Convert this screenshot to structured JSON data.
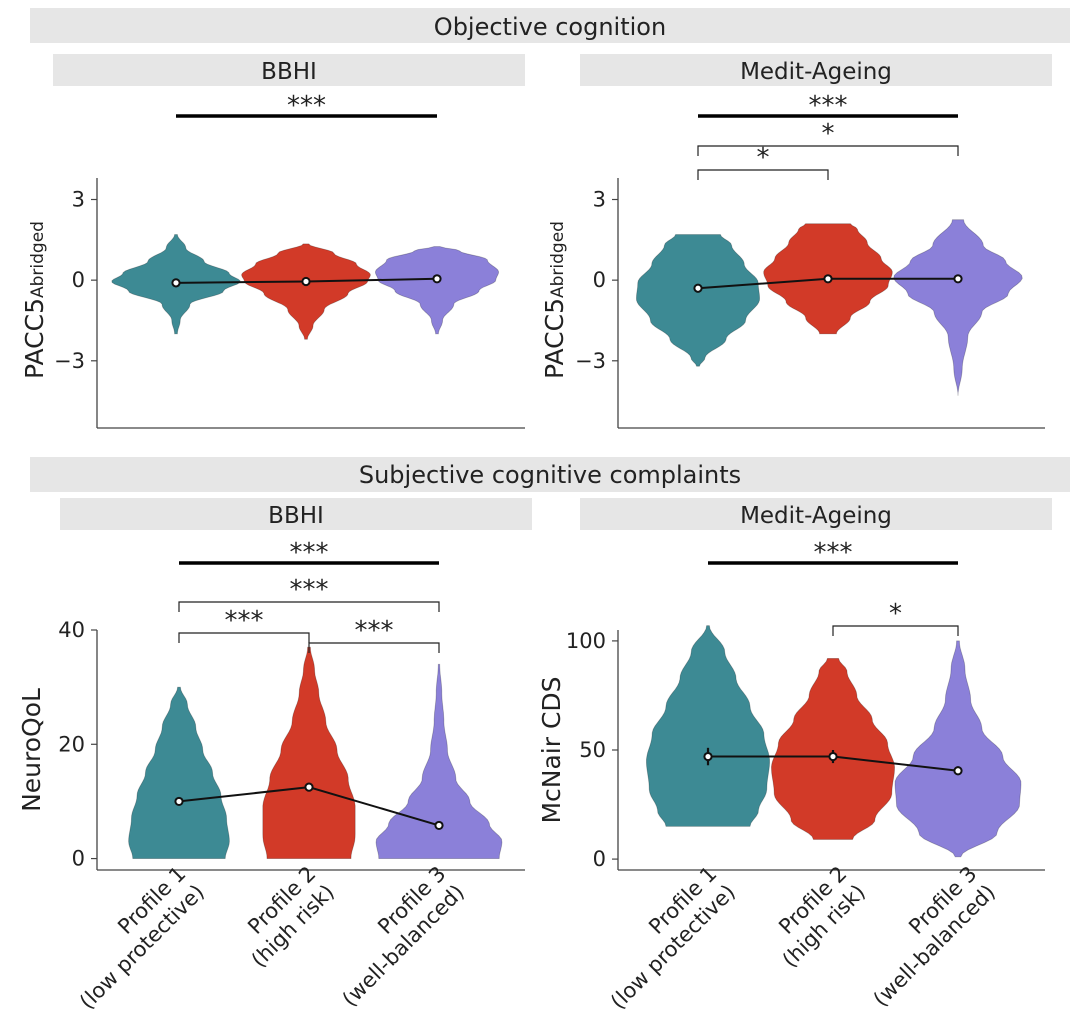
{
  "sections": {
    "objective": "Objective cognition",
    "subjective": "Subjective cognitive complaints"
  },
  "x_categories": [
    {
      "line1": "Profile 1",
      "line2": "(low protective)"
    },
    {
      "line1": "Profile 2",
      "line2": "(high risk)"
    },
    {
      "line1": "Profile 3",
      "line2": "(well-balanced)"
    }
  ],
  "colors": {
    "profile1": "#3d8a94",
    "profile2": "#d23a28",
    "profile3": "#8b80d9",
    "header_bg": "#e6e6e6",
    "axis": "#444444",
    "line": "#111111"
  },
  "chart_data": [
    {
      "id": "p1",
      "type": "violin",
      "study": "BBHI",
      "ylabel_main": "PACC5",
      "ylabel_sub": "Abridged",
      "ylim": [
        -5.5,
        3.8
      ],
      "yticks": [
        3,
        0,
        -3
      ],
      "means": [
        -0.1,
        -0.05,
        0.05
      ],
      "errors": [
        0.05,
        0.05,
        0.05
      ],
      "violins": [
        {
          "min": -2.0,
          "max": 1.7,
          "stats": [
            [
              -2.0,
              0.01
            ],
            [
              -1.5,
              0.03
            ],
            [
              -0.9,
              0.1
            ],
            [
              -0.4,
              0.34
            ],
            [
              -0.05,
              0.46
            ],
            [
              0.25,
              0.38
            ],
            [
              0.7,
              0.2
            ],
            [
              1.2,
              0.07
            ],
            [
              1.7,
              0.01
            ]
          ]
        },
        {
          "min": -2.2,
          "max": 1.35,
          "stats": [
            [
              -2.2,
              0.01
            ],
            [
              -1.7,
              0.05
            ],
            [
              -1.1,
              0.13
            ],
            [
              -0.5,
              0.3
            ],
            [
              -0.05,
              0.44
            ],
            [
              0.2,
              0.46
            ],
            [
              0.6,
              0.36
            ],
            [
              1.0,
              0.2
            ],
            [
              1.35,
              0.02
            ]
          ]
        },
        {
          "min": -2.0,
          "max": 1.25,
          "stats": [
            [
              -2.0,
              0.01
            ],
            [
              -1.5,
              0.04
            ],
            [
              -0.9,
              0.12
            ],
            [
              -0.4,
              0.3
            ],
            [
              0.0,
              0.42
            ],
            [
              0.3,
              0.44
            ],
            [
              0.75,
              0.36
            ],
            [
              1.1,
              0.16
            ],
            [
              1.25,
              0.02
            ]
          ]
        }
      ],
      "significance": [
        {
          "from": 0,
          "to": 2,
          "label": "***",
          "style": "thick"
        }
      ]
    },
    {
      "id": "p2",
      "type": "violin",
      "study": "Medit-Ageing",
      "ylabel_main": "PACC5",
      "ylabel_sub": "Abridged",
      "ylim": [
        -5.5,
        3.8
      ],
      "yticks": [
        3,
        0,
        -3
      ],
      "means": [
        -0.3,
        0.05,
        0.05
      ],
      "errors": [
        0.12,
        0.08,
        0.08
      ],
      "violins": [
        {
          "min": -3.2,
          "max": 1.7,
          "stats": [
            [
              -3.2,
              0.01
            ],
            [
              -2.9,
              0.05
            ],
            [
              -2.2,
              0.2
            ],
            [
              -1.5,
              0.34
            ],
            [
              -0.7,
              0.44
            ],
            [
              -0.1,
              0.43
            ],
            [
              0.6,
              0.33
            ],
            [
              1.3,
              0.24
            ],
            [
              1.7,
              0.16
            ]
          ]
        },
        {
          "min": -2.0,
          "max": 2.1,
          "stats": [
            [
              -2.0,
              0.06
            ],
            [
              -1.4,
              0.16
            ],
            [
              -0.8,
              0.3
            ],
            [
              -0.2,
              0.43
            ],
            [
              0.3,
              0.46
            ],
            [
              0.8,
              0.38
            ],
            [
              1.4,
              0.28
            ],
            [
              1.9,
              0.21
            ],
            [
              2.1,
              0.16
            ]
          ]
        },
        {
          "min": -4.3,
          "max": 2.25,
          "stats": [
            [
              -4.3,
              0.0
            ],
            [
              -3.3,
              0.03
            ],
            [
              -2.1,
              0.07
            ],
            [
              -1.2,
              0.17
            ],
            [
              -0.5,
              0.36
            ],
            [
              0.1,
              0.46
            ],
            [
              0.7,
              0.34
            ],
            [
              1.3,
              0.18
            ],
            [
              2.25,
              0.04
            ]
          ]
        }
      ],
      "significance": [
        {
          "from": 0,
          "to": 2,
          "label": "***",
          "style": "thick"
        },
        {
          "from": 0,
          "to": 2,
          "label": "*",
          "style": "bracket"
        },
        {
          "from": 0,
          "to": 1,
          "label": "*",
          "style": "bracket"
        }
      ]
    },
    {
      "id": "p3",
      "type": "violin",
      "study": "BBHI",
      "ylabel_main": "NeuroQoL",
      "ylabel_sub": "",
      "ylim": [
        -2,
        40
      ],
      "yticks": [
        40,
        20,
        0
      ],
      "means": [
        10.0,
        12.5,
        5.8
      ],
      "errors": [
        0.4,
        0.4,
        0.4
      ],
      "violins": [
        {
          "min": 0,
          "max": 30,
          "stats": [
            [
              0,
              0.33
            ],
            [
              3,
              0.36
            ],
            [
              7,
              0.34
            ],
            [
              11,
              0.3
            ],
            [
              15,
              0.24
            ],
            [
              19,
              0.17
            ],
            [
              23,
              0.12
            ],
            [
              27,
              0.06
            ],
            [
              30,
              0.01
            ]
          ]
        },
        {
          "min": 0,
          "max": 37,
          "stats": [
            [
              0,
              0.3
            ],
            [
              4,
              0.33
            ],
            [
              9,
              0.33
            ],
            [
              14,
              0.28
            ],
            [
              19,
              0.2
            ],
            [
              24,
              0.12
            ],
            [
              29,
              0.07
            ],
            [
              33,
              0.04
            ],
            [
              37,
              0.01
            ]
          ]
        },
        {
          "min": 0,
          "max": 34,
          "stats": [
            [
              0,
              0.43
            ],
            [
              3,
              0.45
            ],
            [
              6,
              0.36
            ],
            [
              10,
              0.22
            ],
            [
              14,
              0.12
            ],
            [
              19,
              0.06
            ],
            [
              24,
              0.035
            ],
            [
              29,
              0.02
            ],
            [
              34,
              0.005
            ]
          ]
        }
      ],
      "significance": [
        {
          "from": 0,
          "to": 2,
          "label": "***",
          "style": "thick"
        },
        {
          "from": 0,
          "to": 2,
          "label": "***",
          "style": "bracket"
        },
        {
          "from": 0,
          "to": 1,
          "label": "***",
          "style": "bracket"
        },
        {
          "from": 1,
          "to": 2,
          "label": "***",
          "style": "bracket"
        }
      ]
    },
    {
      "id": "p4",
      "type": "violin",
      "study": "Medit-Ageing",
      "ylabel_main": "McNair CDS",
      "ylabel_sub": "",
      "ylim": [
        -5,
        105
      ],
      "yticks": [
        100,
        50,
        0
      ],
      "means": [
        47,
        47,
        40.5
      ],
      "errors": [
        4,
        3,
        2
      ],
      "violins": [
        {
          "min": 15,
          "max": 107,
          "stats": [
            [
              15,
              0.3
            ],
            [
              22,
              0.36
            ],
            [
              32,
              0.42
            ],
            [
              45,
              0.44
            ],
            [
              57,
              0.4
            ],
            [
              70,
              0.3
            ],
            [
              83,
              0.2
            ],
            [
              95,
              0.12
            ],
            [
              107,
              0.01
            ]
          ]
        },
        {
          "min": 9,
          "max": 92,
          "stats": [
            [
              9,
              0.14
            ],
            [
              18,
              0.3
            ],
            [
              30,
              0.42
            ],
            [
              42,
              0.44
            ],
            [
              53,
              0.39
            ],
            [
              64,
              0.28
            ],
            [
              75,
              0.17
            ],
            [
              86,
              0.1
            ],
            [
              92,
              0.04
            ]
          ]
        },
        {
          "min": 1,
          "max": 100,
          "stats": [
            [
              1,
              0.02
            ],
            [
              12,
              0.28
            ],
            [
              25,
              0.44
            ],
            [
              35,
              0.45
            ],
            [
              47,
              0.32
            ],
            [
              60,
              0.17
            ],
            [
              73,
              0.09
            ],
            [
              87,
              0.05
            ],
            [
              100,
              0.01
            ]
          ]
        }
      ],
      "significance": [
        {
          "from": 0,
          "to": 2,
          "label": "***",
          "style": "thick"
        },
        {
          "from": 1,
          "to": 2,
          "label": "*",
          "style": "bracket"
        }
      ]
    }
  ]
}
